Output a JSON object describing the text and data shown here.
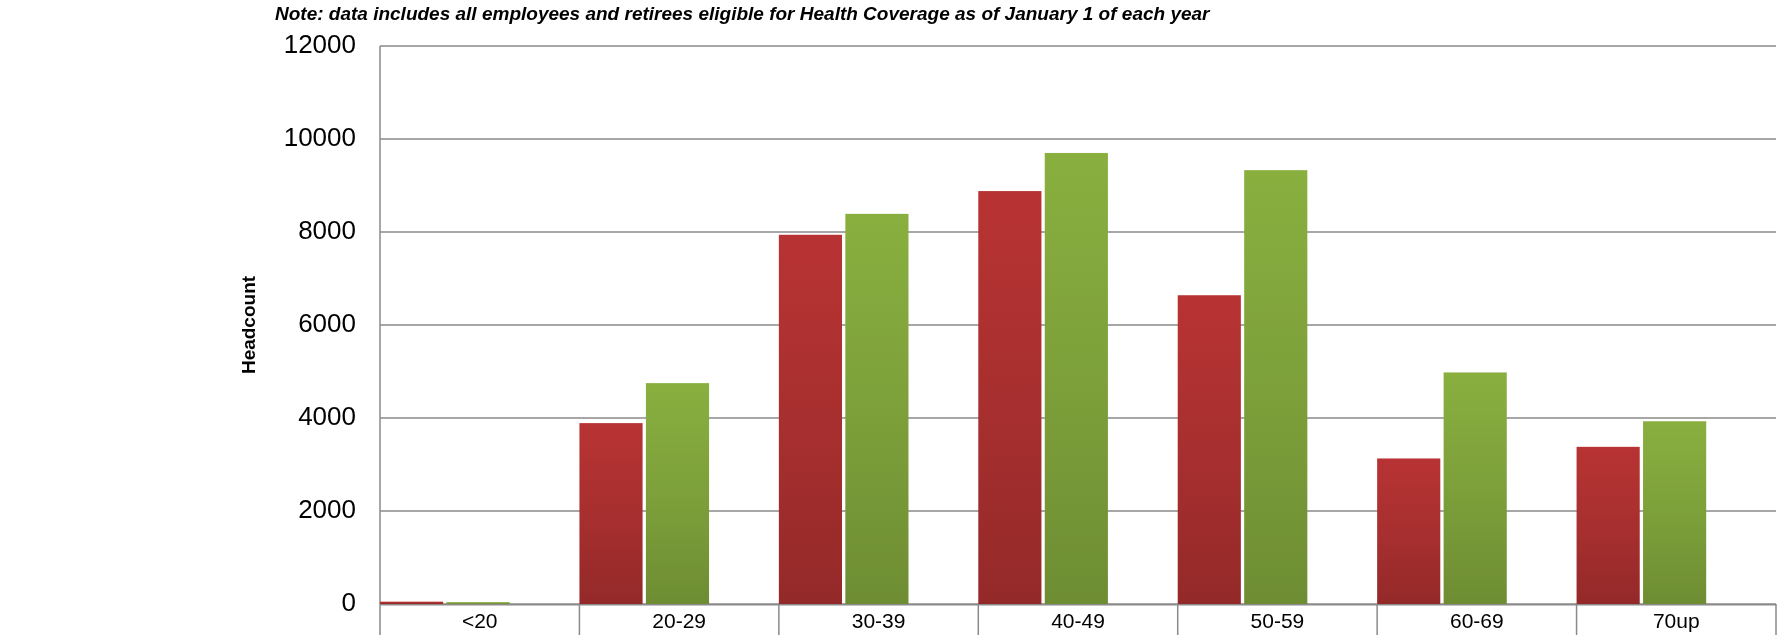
{
  "chart_data": {
    "type": "bar",
    "annotations": [
      "Note: data includes all employees and retirees eligible for Health Coverage as of January 1 of each year"
    ],
    "ylabel": "Headcount",
    "categories": [
      "<20",
      "20-29",
      "30-39",
      "40-49",
      "50-59",
      "60-69",
      "70up"
    ],
    "series": [
      {
        "color": "#a82f2f",
        "values": [
          50,
          3890,
          7940,
          8880,
          6640,
          3130,
          3380
        ]
      },
      {
        "color": "#7da03a",
        "values": [
          40,
          4750,
          8390,
          9700,
          9330,
          4980,
          3930
        ]
      }
    ],
    "ylim": [
      0,
      12000
    ],
    "yticks": [
      0,
      2000,
      4000,
      6000,
      8000,
      10000,
      12000
    ],
    "grid": "y"
  }
}
